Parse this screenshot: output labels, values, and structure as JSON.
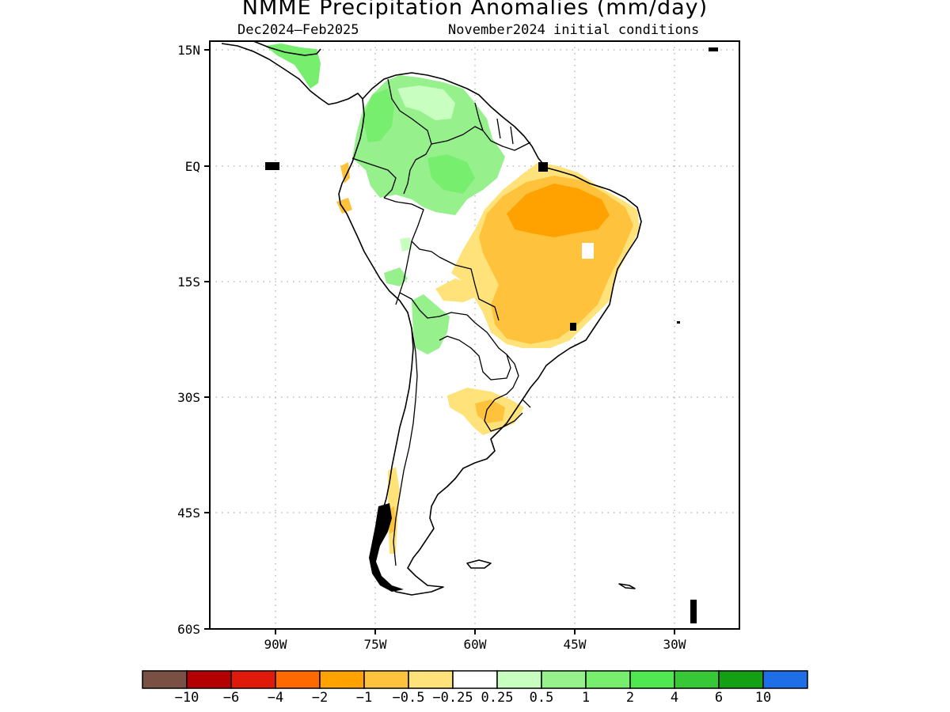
{
  "title": "NMME Precipitation Anomalies (mm/day)",
  "season": "Dec2024–Feb2025",
  "initial_conditions": "November2024 initial conditions",
  "lat_labels": [
    "15N",
    "EQ",
    "15S",
    "30S",
    "45S",
    "60S"
  ],
  "lon_labels": [
    "90W",
    "75W",
    "60W",
    "45W",
    "30W"
  ],
  "colorbar": {
    "labels": [
      "−10",
      "−6",
      "−4",
      "−2",
      "−1",
      "−0.5",
      "−0.25",
      "0.25",
      "0.5",
      "1",
      "2",
      "4",
      "6",
      "10"
    ],
    "colors": [
      "#7b5044",
      "#b40000",
      "#e01a0a",
      "#ff6a00",
      "#ffa200",
      "#ffc23c",
      "#ffe27a",
      "#ffffff",
      "#c8ffc0",
      "#96f08c",
      "#78ee6e",
      "#50e850",
      "#37c837",
      "#14a014",
      "#1e6ee8"
    ]
  }
}
